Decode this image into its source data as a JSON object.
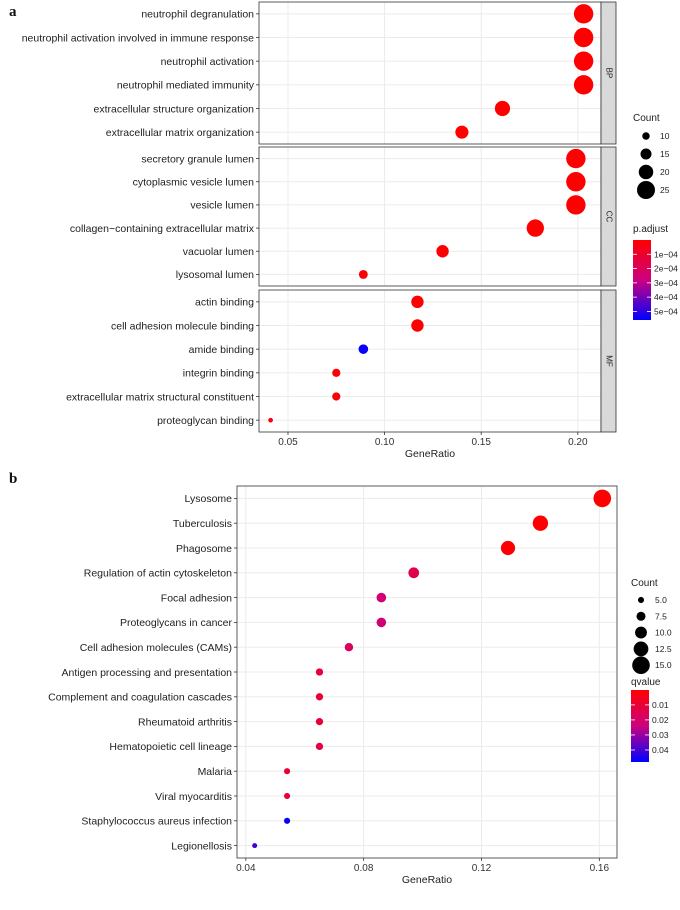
{
  "chart_data": [
    {
      "panel_label": "a",
      "type": "scatter",
      "subtype": "dotplot-faceted",
      "xlabel": "GeneRatio",
      "xlim": [
        0.035,
        0.212
      ],
      "xticks": [
        0.05,
        0.1,
        0.15,
        0.2
      ],
      "xtick_labels": [
        "0.05",
        "0.10",
        "0.15",
        "0.20"
      ],
      "facets": [
        {
          "strip": "BP",
          "terms": [
            {
              "label": "neutrophil degranulation",
              "gene_ratio": 0.203,
              "count": 27,
              "p_adjust": 5e-07
            },
            {
              "label": "neutrophil activation involved in immune response",
              "gene_ratio": 0.203,
              "count": 27,
              "p_adjust": 5e-07
            },
            {
              "label": "neutrophil activation",
              "gene_ratio": 0.203,
              "count": 27,
              "p_adjust": 5e-07
            },
            {
              "label": "neutrophil mediated immunity",
              "gene_ratio": 0.203,
              "count": 27,
              "p_adjust": 5e-07
            },
            {
              "label": "extracellular structure organization",
              "gene_ratio": 0.161,
              "count": 21,
              "p_adjust": 1e-06
            },
            {
              "label": "extracellular matrix organization",
              "gene_ratio": 0.14,
              "count": 18,
              "p_adjust": 2e-06
            }
          ]
        },
        {
          "strip": "CC",
          "terms": [
            {
              "label": "secretory granule lumen",
              "gene_ratio": 0.199,
              "count": 27,
              "p_adjust": 5e-07
            },
            {
              "label": "cytoplasmic vesicle lumen",
              "gene_ratio": 0.199,
              "count": 27,
              "p_adjust": 5e-07
            },
            {
              "label": "vesicle lumen",
              "gene_ratio": 0.199,
              "count": 27,
              "p_adjust": 5e-07
            },
            {
              "label": "collagen−containing extracellular matrix",
              "gene_ratio": 0.178,
              "count": 24,
              "p_adjust": 1e-06
            },
            {
              "label": "vacuolar lumen",
              "gene_ratio": 0.13,
              "count": 17,
              "p_adjust": 3e-06
            },
            {
              "label": "lysosomal lumen",
              "gene_ratio": 0.089,
              "count": 12,
              "p_adjust": 4e-06
            }
          ]
        },
        {
          "strip": "MF",
          "terms": [
            {
              "label": "actin binding",
              "gene_ratio": 0.117,
              "count": 17,
              "p_adjust": 5e-06
            },
            {
              "label": "cell adhesion molecule binding",
              "gene_ratio": 0.117,
              "count": 17,
              "p_adjust": 5e-06
            },
            {
              "label": "amide binding",
              "gene_ratio": 0.089,
              "count": 13,
              "p_adjust": 0.00055
            },
            {
              "label": "integrin binding",
              "gene_ratio": 0.075,
              "count": 11,
              "p_adjust": 1.2e-05
            },
            {
              "label": "extracellular matrix structural constituent",
              "gene_ratio": 0.075,
              "count": 11,
              "p_adjust": 1.2e-05
            },
            {
              "label": "proteoglycan binding",
              "gene_ratio": 0.041,
              "count": 6,
              "p_adjust": 3e-05
            }
          ]
        }
      ],
      "size_legend": {
        "title": "Count",
        "values": [
          10,
          15,
          20,
          25
        ],
        "labels": [
          "10",
          "15",
          "20",
          "25"
        ]
      },
      "color_legend": {
        "title": "p.adjust",
        "range": [
          1e-07,
          0.00056
        ],
        "ticks": [
          0.0001,
          0.0002,
          0.0003,
          0.0004,
          0.0005
        ],
        "tick_labels": [
          "1e−04",
          "2e−04",
          "3e−04",
          "4e−04",
          "5e−04"
        ],
        "colors": [
          "#ff0000",
          "#0000ff"
        ]
      }
    },
    {
      "panel_label": "b",
      "type": "scatter",
      "subtype": "dotplot",
      "xlabel": "GeneRatio",
      "xlim": [
        0.037,
        0.166
      ],
      "xticks": [
        0.04,
        0.08,
        0.12,
        0.16
      ],
      "xtick_labels": [
        "0.04",
        "0.08",
        "0.12",
        "0.16"
      ],
      "terms": [
        {
          "label": "Lysosome",
          "gene_ratio": 0.161,
          "count": 15,
          "qvalue": 0.0002
        },
        {
          "label": "Tuberculosis",
          "gene_ratio": 0.14,
          "count": 13,
          "qvalue": 0.0002
        },
        {
          "label": "Phagosome",
          "gene_ratio": 0.129,
          "count": 12,
          "qvalue": 0.0006
        },
        {
          "label": "Regulation of actin cytoskeleton",
          "gene_ratio": 0.097,
          "count": 9,
          "qvalue": 0.015
        },
        {
          "label": "Focal adhesion",
          "gene_ratio": 0.086,
          "count": 8,
          "qvalue": 0.022
        },
        {
          "label": "Proteoglycans in cancer",
          "gene_ratio": 0.086,
          "count": 8,
          "qvalue": 0.022
        },
        {
          "label": "Cell adhesion molecules (CAMs)",
          "gene_ratio": 0.075,
          "count": 7,
          "qvalue": 0.018
        },
        {
          "label": "Antigen processing and presentation",
          "gene_ratio": 0.065,
          "count": 6,
          "qvalue": 0.011
        },
        {
          "label": "Complement and coagulation cascades",
          "gene_ratio": 0.065,
          "count": 6,
          "qvalue": 0.011
        },
        {
          "label": "Rheumatoid arthritis",
          "gene_ratio": 0.065,
          "count": 6,
          "qvalue": 0.011
        },
        {
          "label": "Hematopoietic cell lineage",
          "gene_ratio": 0.065,
          "count": 6,
          "qvalue": 0.012
        },
        {
          "label": "Malaria",
          "gene_ratio": 0.054,
          "count": 5,
          "qvalue": 0.01
        },
        {
          "label": "Viral myocarditis",
          "gene_ratio": 0.054,
          "count": 5,
          "qvalue": 0.011
        },
        {
          "label": "Staphylococcus aureus infection",
          "gene_ratio": 0.054,
          "count": 5,
          "qvalue": 0.047
        },
        {
          "label": "Legionellosis",
          "gene_ratio": 0.043,
          "count": 4,
          "qvalue": 0.04
        }
      ],
      "size_legend": {
        "title": "Count",
        "values": [
          5.0,
          7.5,
          10.0,
          12.5,
          15.0
        ],
        "labels": [
          "5.0",
          "7.5",
          "10.0",
          "12.5",
          "15.0"
        ]
      },
      "color_legend": {
        "title": "qvalue",
        "range": [
          0.0001,
          0.048
        ],
        "ticks": [
          0.01,
          0.02,
          0.03,
          0.04
        ],
        "tick_labels": [
          "0.01",
          "0.02",
          "0.03",
          "0.04"
        ],
        "colors": [
          "#ff0000",
          "#0000ff"
        ]
      }
    }
  ]
}
